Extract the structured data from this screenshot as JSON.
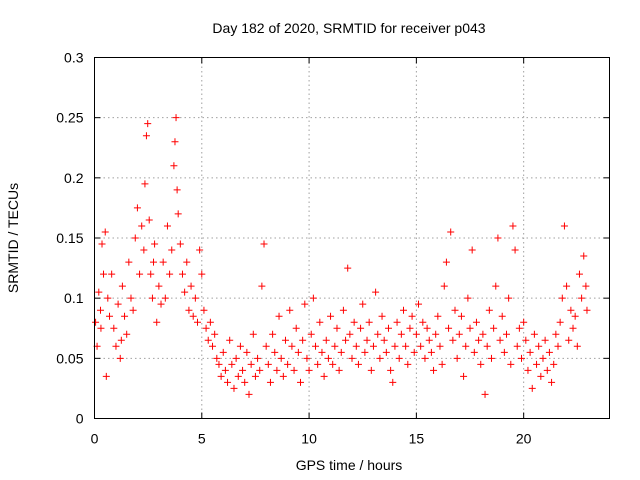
{
  "chart_data": {
    "type": "scatter",
    "title": "Day 182 of 2020, SRMTID for receiver p043",
    "xlabel": "GPS time / hours",
    "ylabel": "SRMTID / TECUs",
    "xlim": [
      0,
      24
    ],
    "ylim": [
      0,
      0.3
    ],
    "x_ticks": [
      0,
      5,
      10,
      15,
      20
    ],
    "x_tick_labels": [
      "0",
      "5",
      "10",
      "15",
      "20"
    ],
    "y_ticks": [
      0,
      0.05,
      0.1,
      0.15,
      0.2,
      0.25,
      0.3
    ],
    "y_tick_labels": [
      "0",
      "0.05",
      "0.1",
      "0.15",
      "0.2",
      "0.25",
      "0.3"
    ],
    "grid": true,
    "marker": "plus",
    "color": "#ff0000",
    "series": [
      {
        "name": "SRMTID",
        "points": [
          [
            0.05,
            0.08
          ],
          [
            0.12,
            0.06
          ],
          [
            0.2,
            0.105
          ],
          [
            0.28,
            0.09
          ],
          [
            0.35,
            0.145
          ],
          [
            0.42,
            0.12
          ],
          [
            0.5,
            0.155
          ],
          [
            0.55,
            0.035
          ],
          [
            0.62,
            0.1
          ],
          [
            0.7,
            0.085
          ],
          [
            0.8,
            0.12
          ],
          [
            0.9,
            0.075
          ],
          [
            1.0,
            0.06
          ],
          [
            1.1,
            0.095
          ],
          [
            1.2,
            0.05
          ],
          [
            1.3,
            0.11
          ],
          [
            1.4,
            0.085
          ],
          [
            1.5,
            0.07
          ],
          [
            1.6,
            0.13
          ],
          [
            1.7,
            0.1
          ],
          [
            1.8,
            0.09
          ],
          [
            1.9,
            0.15
          ],
          [
            2.0,
            0.175
          ],
          [
            2.1,
            0.12
          ],
          [
            2.2,
            0.16
          ],
          [
            2.3,
            0.14
          ],
          [
            2.35,
            0.195
          ],
          [
            2.42,
            0.235
          ],
          [
            2.48,
            0.245
          ],
          [
            2.55,
            0.165
          ],
          [
            2.62,
            0.12
          ],
          [
            2.7,
            0.1
          ],
          [
            2.8,
            0.145
          ],
          [
            2.9,
            0.08
          ],
          [
            3.0,
            0.11
          ],
          [
            3.1,
            0.095
          ],
          [
            3.2,
            0.13
          ],
          [
            3.3,
            0.1
          ],
          [
            3.4,
            0.16
          ],
          [
            3.5,
            0.12
          ],
          [
            3.6,
            0.14
          ],
          [
            3.7,
            0.21
          ],
          [
            3.75,
            0.23
          ],
          [
            3.8,
            0.25
          ],
          [
            3.85,
            0.19
          ],
          [
            3.9,
            0.17
          ],
          [
            4.0,
            0.145
          ],
          [
            4.1,
            0.12
          ],
          [
            4.2,
            0.105
          ],
          [
            4.3,
            0.13
          ],
          [
            4.4,
            0.09
          ],
          [
            4.5,
            0.11
          ],
          [
            4.6,
            0.085
          ],
          [
            4.7,
            0.1
          ],
          [
            4.8,
            0.08
          ],
          [
            4.9,
            0.14
          ],
          [
            5.0,
            0.12
          ],
          [
            5.1,
            0.09
          ],
          [
            5.2,
            0.075
          ],
          [
            5.3,
            0.065
          ],
          [
            5.4,
            0.08
          ],
          [
            5.5,
            0.06
          ],
          [
            5.6,
            0.07
          ],
          [
            5.7,
            0.05
          ],
          [
            5.8,
            0.045
          ],
          [
            5.9,
            0.035
          ],
          [
            6.0,
            0.055
          ],
          [
            6.1,
            0.04
          ],
          [
            6.2,
            0.03
          ],
          [
            6.3,
            0.065
          ],
          [
            6.4,
            0.045
          ],
          [
            6.5,
            0.025
          ],
          [
            6.6,
            0.05
          ],
          [
            6.7,
            0.035
          ],
          [
            6.8,
            0.06
          ],
          [
            6.9,
            0.04
          ],
          [
            7.0,
            0.03
          ],
          [
            7.1,
            0.055
          ],
          [
            7.2,
            0.02
          ],
          [
            7.3,
            0.045
          ],
          [
            7.4,
            0.07
          ],
          [
            7.5,
            0.035
          ],
          [
            7.6,
            0.05
          ],
          [
            7.7,
            0.04
          ],
          [
            7.8,
            0.11
          ],
          [
            7.9,
            0.145
          ],
          [
            8.0,
            0.06
          ],
          [
            8.1,
            0.045
          ],
          [
            8.2,
            0.03
          ],
          [
            8.3,
            0.07
          ],
          [
            8.4,
            0.055
          ],
          [
            8.5,
            0.04
          ],
          [
            8.6,
            0.085
          ],
          [
            8.7,
            0.05
          ],
          [
            8.8,
            0.035
          ],
          [
            8.9,
            0.065
          ],
          [
            9.0,
            0.045
          ],
          [
            9.1,
            0.09
          ],
          [
            9.2,
            0.06
          ],
          [
            9.3,
            0.04
          ],
          [
            9.4,
            0.075
          ],
          [
            9.5,
            0.055
          ],
          [
            9.6,
            0.03
          ],
          [
            9.7,
            0.065
          ],
          [
            9.8,
            0.095
          ],
          [
            9.9,
            0.05
          ],
          [
            10.0,
            0.04
          ],
          [
            10.1,
            0.07
          ],
          [
            10.2,
            0.1
          ],
          [
            10.3,
            0.06
          ],
          [
            10.4,
            0.045
          ],
          [
            10.5,
            0.08
          ],
          [
            10.6,
            0.055
          ],
          [
            10.7,
            0.035
          ],
          [
            10.8,
            0.065
          ],
          [
            10.9,
            0.05
          ],
          [
            11.0,
            0.085
          ],
          [
            11.1,
            0.045
          ],
          [
            11.2,
            0.06
          ],
          [
            11.3,
            0.075
          ],
          [
            11.4,
            0.04
          ],
          [
            11.5,
            0.055
          ],
          [
            11.6,
            0.09
          ],
          [
            11.7,
            0.065
          ],
          [
            11.8,
            0.125
          ],
          [
            11.9,
            0.07
          ],
          [
            12.0,
            0.05
          ],
          [
            12.1,
            0.08
          ],
          [
            12.2,
            0.06
          ],
          [
            12.3,
            0.045
          ],
          [
            12.4,
            0.075
          ],
          [
            12.5,
            0.095
          ],
          [
            12.6,
            0.055
          ],
          [
            12.7,
            0.065
          ],
          [
            12.8,
            0.08
          ],
          [
            12.9,
            0.04
          ],
          [
            13.0,
            0.06
          ],
          [
            13.1,
            0.105
          ],
          [
            13.2,
            0.07
          ],
          [
            13.3,
            0.05
          ],
          [
            13.4,
            0.085
          ],
          [
            13.5,
            0.065
          ],
          [
            13.6,
            0.055
          ],
          [
            13.7,
            0.075
          ],
          [
            13.8,
            0.04
          ],
          [
            13.9,
            0.03
          ],
          [
            14.0,
            0.06
          ],
          [
            14.1,
            0.08
          ],
          [
            14.2,
            0.05
          ],
          [
            14.3,
            0.07
          ],
          [
            14.4,
            0.09
          ],
          [
            14.5,
            0.06
          ],
          [
            14.6,
            0.045
          ],
          [
            14.7,
            0.075
          ],
          [
            14.8,
            0.085
          ],
          [
            14.9,
            0.055
          ],
          [
            15.0,
            0.07
          ],
          [
            15.1,
            0.095
          ],
          [
            15.2,
            0.06
          ],
          [
            15.3,
            0.08
          ],
          [
            15.4,
            0.05
          ],
          [
            15.5,
            0.075
          ],
          [
            15.6,
            0.065
          ],
          [
            15.7,
            0.055
          ],
          [
            15.8,
            0.04
          ],
          [
            15.9,
            0.07
          ],
          [
            16.0,
            0.085
          ],
          [
            16.1,
            0.06
          ],
          [
            16.2,
            0.045
          ],
          [
            16.3,
            0.11
          ],
          [
            16.4,
            0.13
          ],
          [
            16.5,
            0.075
          ],
          [
            16.6,
            0.155
          ],
          [
            16.7,
            0.065
          ],
          [
            16.8,
            0.09
          ],
          [
            16.9,
            0.05
          ],
          [
            17.0,
            0.07
          ],
          [
            17.1,
            0.085
          ],
          [
            17.2,
            0.035
          ],
          [
            17.3,
            0.06
          ],
          [
            17.4,
            0.1
          ],
          [
            17.5,
            0.075
          ],
          [
            17.6,
            0.14
          ],
          [
            17.7,
            0.055
          ],
          [
            17.8,
            0.08
          ],
          [
            17.9,
            0.065
          ],
          [
            18.0,
            0.045
          ],
          [
            18.1,
            0.07
          ],
          [
            18.2,
            0.02
          ],
          [
            18.3,
            0.06
          ],
          [
            18.4,
            0.09
          ],
          [
            18.5,
            0.05
          ],
          [
            18.6,
            0.075
          ],
          [
            18.7,
            0.11
          ],
          [
            18.8,
            0.15
          ],
          [
            18.9,
            0.065
          ],
          [
            19.0,
            0.085
          ],
          [
            19.1,
            0.055
          ],
          [
            19.2,
            0.07
          ],
          [
            19.3,
            0.1
          ],
          [
            19.4,
            0.045
          ],
          [
            19.5,
            0.16
          ],
          [
            19.6,
            0.14
          ],
          [
            19.7,
            0.06
          ],
          [
            19.8,
            0.075
          ],
          [
            19.9,
            0.05
          ],
          [
            20.0,
            0.08
          ],
          [
            20.1,
            0.065
          ],
          [
            20.2,
            0.04
          ],
          [
            20.3,
            0.055
          ],
          [
            20.4,
            0.025
          ],
          [
            20.5,
            0.07
          ],
          [
            20.6,
            0.045
          ],
          [
            20.7,
            0.06
          ],
          [
            20.8,
            0.035
          ],
          [
            20.9,
            0.05
          ],
          [
            21.0,
            0.065
          ],
          [
            21.1,
            0.04
          ],
          [
            21.2,
            0.055
          ],
          [
            21.3,
            0.03
          ],
          [
            21.4,
            0.045
          ],
          [
            21.5,
            0.07
          ],
          [
            21.6,
            0.06
          ],
          [
            21.7,
            0.08
          ],
          [
            21.8,
            0.1
          ],
          [
            21.9,
            0.16
          ],
          [
            22.0,
            0.11
          ],
          [
            22.1,
            0.065
          ],
          [
            22.2,
            0.09
          ],
          [
            22.3,
            0.075
          ],
          [
            22.4,
            0.085
          ],
          [
            22.5,
            0.06
          ],
          [
            22.6,
            0.12
          ],
          [
            22.7,
            0.1
          ],
          [
            22.8,
            0.135
          ],
          [
            22.9,
            0.11
          ],
          [
            22.95,
            0.09
          ],
          [
            0.3,
            0.075
          ],
          [
            1.25,
            0.065
          ],
          [
            2.75,
            0.13
          ]
        ]
      }
    ]
  }
}
